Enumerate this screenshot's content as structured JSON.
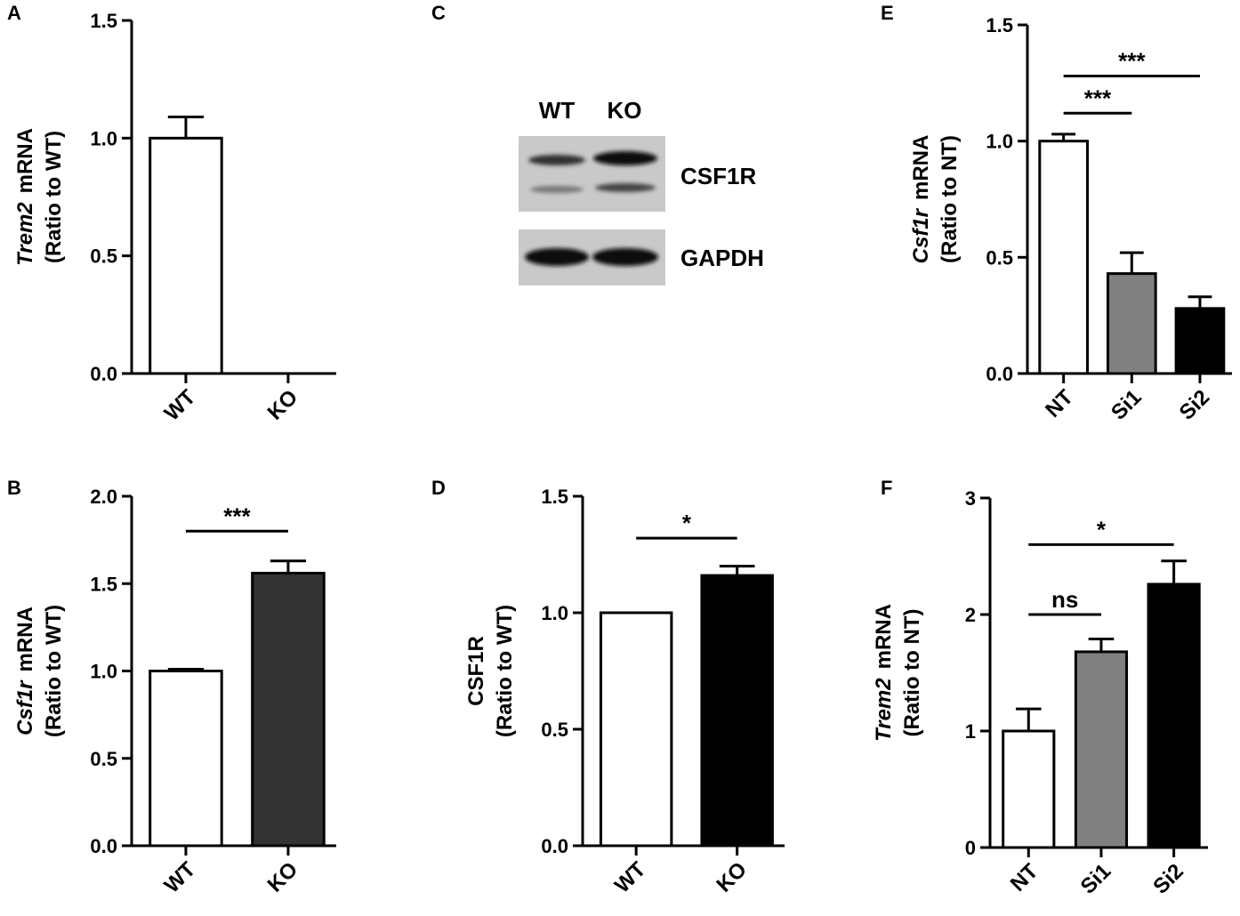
{
  "chart_data": [
    {
      "type": "bar",
      "panel": "A",
      "categories": [
        "WT",
        "KO"
      ],
      "values": [
        1.0,
        0
      ],
      "errors": [
        0.09,
        0
      ],
      "colors": [
        "#ffffff",
        "#ffffff"
      ],
      "ylabel": [
        [
          {
            "text": "Trem2",
            "italic": true
          },
          {
            "text": "mRNA"
          }
        ],
        [
          {
            "text": "(Ratio to WT)"
          }
        ]
      ],
      "ylim": [
        0,
        1.5
      ],
      "yticks": [
        {
          "value": 0,
          "label": "0.0"
        },
        0.5,
        {
          "value": 1,
          "label": "1.0"
        },
        1.5
      ],
      "annotations": []
    },
    {
      "type": "bar",
      "panel": "B",
      "categories": [
        "WT",
        "KO"
      ],
      "values": [
        1.0,
        1.56
      ],
      "errors": [
        0.01,
        0.07
      ],
      "colors": [
        "#ffffff",
        "#333333"
      ],
      "ylabel": [
        [
          {
            "text": "Csf1r",
            "italic": true
          },
          {
            "text": "mRNA"
          }
        ],
        [
          {
            "text": "(Ratio to WT)"
          }
        ]
      ],
      "ylim": [
        0,
        2
      ],
      "yticks": [
        {
          "value": 0,
          "label": "0.0"
        },
        0.5,
        {
          "value": 1,
          "label": "1.0"
        },
        1.5,
        {
          "value": 2,
          "label": "2.0"
        }
      ],
      "annotations": [
        {
          "text": "***",
          "from": "WT",
          "to": "KO",
          "y": 1.8
        }
      ]
    },
    {
      "type": "bar",
      "panel": "D",
      "categories": [
        "WT",
        "KO"
      ],
      "values": [
        1.0,
        1.16
      ],
      "errors": [
        0,
        0.04
      ],
      "colors": [
        "#ffffff",
        "#000000"
      ],
      "ylabel": [
        [
          {
            "text": "CSF1R"
          }
        ],
        [
          {
            "text": "(Ratio to WT)"
          }
        ]
      ],
      "ylim": [
        0,
        1.5
      ],
      "yticks": [
        {
          "value": 0,
          "label": "0.0"
        },
        0.5,
        {
          "value": 1,
          "label": "1.0"
        },
        1.5
      ],
      "annotations": [
        {
          "text": "*",
          "from": "WT",
          "to": "KO",
          "y": 1.32
        }
      ]
    },
    {
      "type": "bar",
      "panel": "E",
      "categories": [
        "NT",
        "Si1",
        "Si2"
      ],
      "values": [
        1.0,
        0.43,
        0.28
      ],
      "errors": [
        0.03,
        0.09,
        0.05
      ],
      "colors": [
        "#ffffff",
        "#808080",
        "#000000"
      ],
      "ylabel": [
        [
          {
            "text": "Csf1r",
            "italic": true
          },
          {
            "text": "mRNA"
          }
        ],
        [
          {
            "text": "(Ratio to NT)"
          }
        ]
      ],
      "ylim": [
        0,
        1.5
      ],
      "yticks": [
        {
          "value": 0,
          "label": "0.0"
        },
        0.5,
        {
          "value": 1,
          "label": "1.0"
        },
        1.5
      ],
      "annotations": [
        {
          "text": "***",
          "from": "NT",
          "to": "Si1",
          "y": 1.12
        },
        {
          "text": "***",
          "from": "NT",
          "to": "Si2",
          "y": 1.28
        }
      ]
    },
    {
      "type": "bar",
      "panel": "F",
      "categories": [
        "NT",
        "Si1",
        "Si2"
      ],
      "values": [
        1.0,
        1.68,
        2.26
      ],
      "errors": [
        0.19,
        0.11,
        0.2
      ],
      "colors": [
        "#ffffff",
        "#808080",
        "#000000"
      ],
      "ylabel": [
        [
          {
            "text": "Trem2",
            "italic": true
          },
          {
            "text": "mRNA"
          }
        ],
        [
          {
            "text": "(Ratio to NT)"
          }
        ]
      ],
      "ylim": [
        0,
        3
      ],
      "yticks": [
        0,
        1,
        2,
        3
      ],
      "annotations": [
        {
          "text": "ns",
          "from": "NT",
          "to": "Si1",
          "y": 2.0
        },
        {
          "text": "*",
          "from": "NT",
          "to": "Si2",
          "y": 2.6
        }
      ]
    }
  ],
  "blot": {
    "panel": "C",
    "lanes": [
      "WT",
      "KO"
    ],
    "bands": [
      "CSF1R",
      "GAPDH"
    ]
  }
}
